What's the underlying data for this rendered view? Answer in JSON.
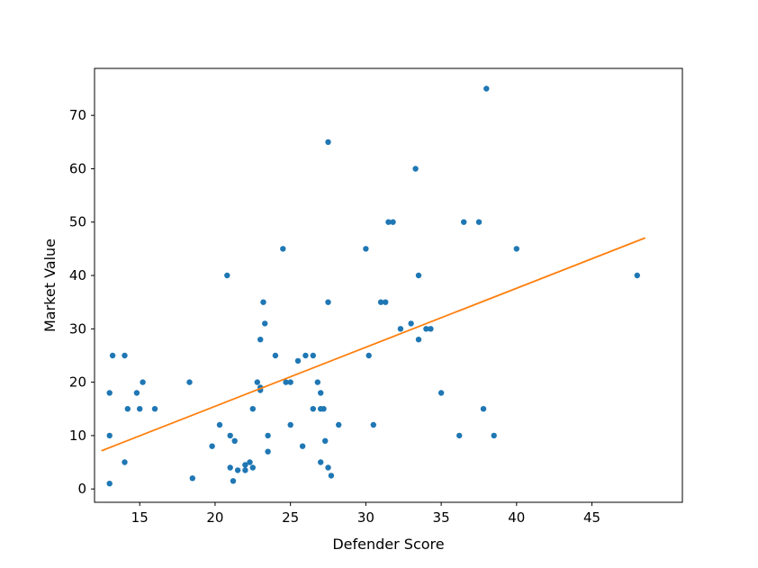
{
  "chart_data": {
    "type": "scatter",
    "title": "",
    "xlabel": "Defender Score",
    "ylabel": "Market Value",
    "xlim": [
      12,
      51
    ],
    "ylim": [
      -2.5,
      78.8
    ],
    "xticks": [
      15,
      20,
      25,
      30,
      35,
      40,
      45
    ],
    "yticks": [
      0,
      10,
      20,
      30,
      40,
      50,
      60,
      70
    ],
    "grid": false,
    "legend": false,
    "series": [
      {
        "name": "players-scatter",
        "type": "scatter",
        "color": "#1f77b4",
        "points": [
          [
            13.0,
            1
          ],
          [
            13.0,
            10
          ],
          [
            13.0,
            18
          ],
          [
            13.2,
            25
          ],
          [
            14.0,
            25
          ],
          [
            14.0,
            5
          ],
          [
            14.2,
            15
          ],
          [
            14.8,
            18
          ],
          [
            15.2,
            20
          ],
          [
            15.0,
            15
          ],
          [
            16.0,
            15
          ],
          [
            18.3,
            20
          ],
          [
            18.5,
            2
          ],
          [
            19.8,
            8
          ],
          [
            20.3,
            12
          ],
          [
            20.8,
            40
          ],
          [
            21.0,
            10
          ],
          [
            21.0,
            4
          ],
          [
            21.2,
            1.5
          ],
          [
            21.3,
            9
          ],
          [
            21.5,
            3.5
          ],
          [
            22.0,
            3.5
          ],
          [
            22.0,
            4.5
          ],
          [
            22.3,
            5
          ],
          [
            22.5,
            4
          ],
          [
            22.5,
            15
          ],
          [
            22.8,
            20
          ],
          [
            23.0,
            18.5
          ],
          [
            23.0,
            19
          ],
          [
            23.0,
            28
          ],
          [
            23.2,
            35
          ],
          [
            23.3,
            31
          ],
          [
            23.5,
            10
          ],
          [
            23.5,
            7
          ],
          [
            24.0,
            25
          ],
          [
            24.5,
            45
          ],
          [
            24.7,
            20
          ],
          [
            25.0,
            20
          ],
          [
            25.0,
            12
          ],
          [
            25.5,
            24
          ],
          [
            25.8,
            8
          ],
          [
            26.0,
            25
          ],
          [
            26.5,
            25
          ],
          [
            26.5,
            15
          ],
          [
            26.8,
            20
          ],
          [
            27.0,
            18
          ],
          [
            27.0,
            15
          ],
          [
            27.2,
            15
          ],
          [
            27.0,
            5
          ],
          [
            27.3,
            9
          ],
          [
            27.5,
            4
          ],
          [
            27.7,
            2.5
          ],
          [
            27.5,
            35
          ],
          [
            27.5,
            65
          ],
          [
            28.2,
            12
          ],
          [
            30.0,
            45
          ],
          [
            30.2,
            25
          ],
          [
            30.5,
            12
          ],
          [
            31.0,
            35
          ],
          [
            31.3,
            35
          ],
          [
            31.5,
            50
          ],
          [
            31.8,
            50
          ],
          [
            32.3,
            30
          ],
          [
            33.0,
            31
          ],
          [
            33.3,
            60
          ],
          [
            33.5,
            40
          ],
          [
            33.5,
            28
          ],
          [
            34.0,
            30
          ],
          [
            34.3,
            30
          ],
          [
            35.0,
            18
          ],
          [
            36.2,
            10
          ],
          [
            36.5,
            50
          ],
          [
            37.5,
            50
          ],
          [
            37.8,
            15
          ],
          [
            38.0,
            75
          ],
          [
            38.5,
            10
          ],
          [
            40.0,
            45
          ],
          [
            48.0,
            40
          ]
        ]
      },
      {
        "name": "trend-line",
        "type": "line",
        "color": "#ff7f0e",
        "points": [
          [
            12.5,
            7.2
          ],
          [
            48.5,
            47.0
          ]
        ]
      }
    ]
  }
}
